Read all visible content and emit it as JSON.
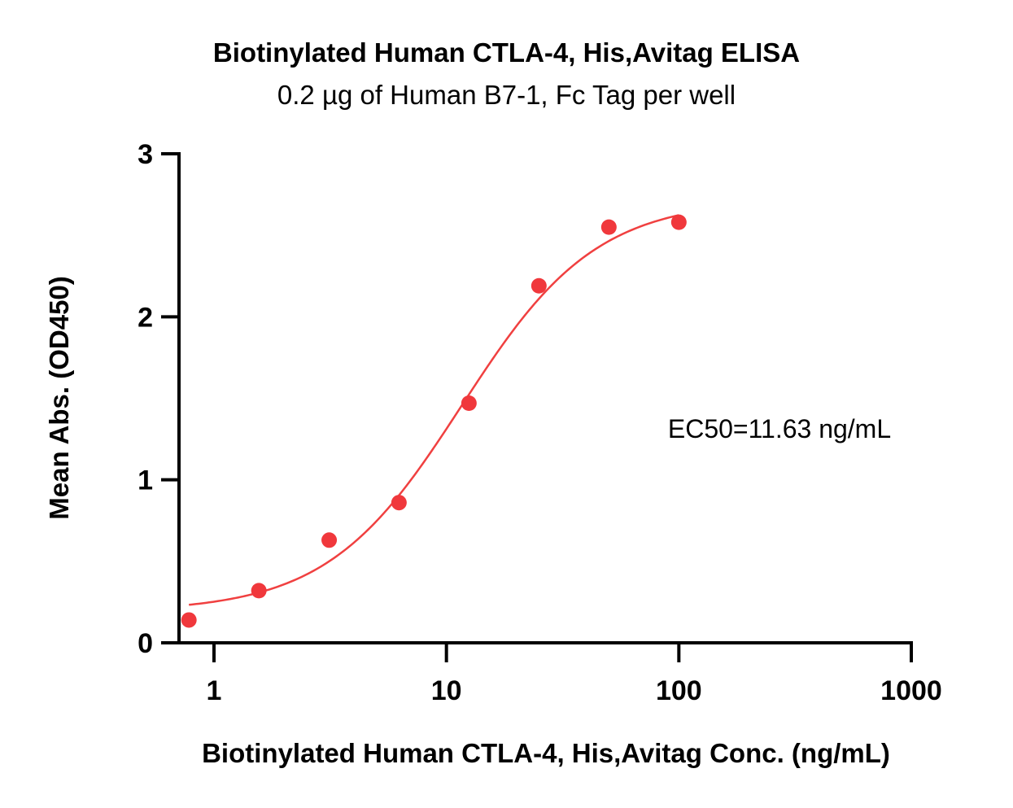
{
  "chart_data": {
    "type": "scatter",
    "title": "Biotinylated Human CTLA-4, His,Avitag ELISA",
    "subtitle": "0.2 µg of Human B7-1, Fc Tag per well",
    "xlabel": "Biotinylated Human CTLA-4, His,Avitag Conc. (ng/mL)",
    "ylabel": "Mean Abs. (OD450)",
    "xscale": "log",
    "xlim": [
      0.7,
      1000
    ],
    "ylim": [
      0,
      3
    ],
    "xticks": [
      "1",
      "10",
      "100",
      "1000"
    ],
    "yticks": [
      "0",
      "1",
      "2",
      "3"
    ],
    "grid": false,
    "series": [
      {
        "marker_color": "#f0383c",
        "x": [
          0.78,
          1.56,
          3.13,
          6.25,
          12.5,
          25,
          50,
          100
        ],
        "y": [
          0.14,
          0.32,
          0.63,
          0.86,
          1.47,
          2.19,
          2.55,
          2.58
        ]
      }
    ],
    "fit": {
      "type": "4PL",
      "bottom": 0.19,
      "top": 2.72,
      "ec50": 11.63,
      "hill": 1.5,
      "color": "#f04040"
    },
    "annotation": "EC50=11.63 ng/mL"
  }
}
